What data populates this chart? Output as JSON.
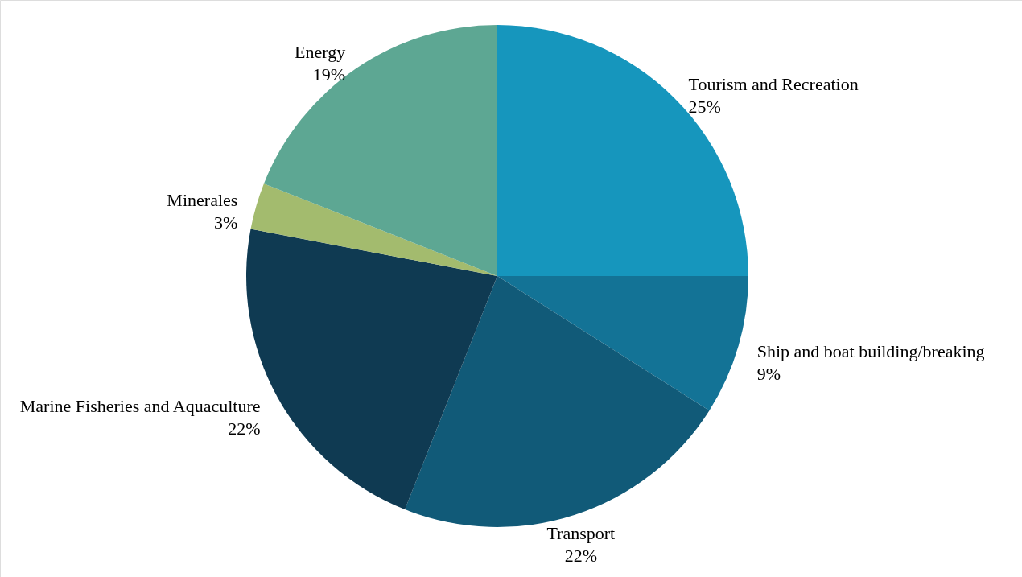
{
  "chart_data": {
    "type": "pie",
    "categories": [
      "Tourism and Recreation",
      "Ship and boat building/breaking",
      "Transport",
      "Marine Fisheries and Aquaculture",
      "Minerales",
      "Energy"
    ],
    "values": [
      25,
      9,
      22,
      22,
      3,
      19
    ],
    "value_labels": [
      "25%",
      "9%",
      "22%",
      "22%",
      "3%",
      "19%"
    ],
    "colors": [
      "#1696bd",
      "#137396",
      "#115a78",
      "#0f3a52",
      "#a3bb6e",
      "#5da793"
    ]
  }
}
